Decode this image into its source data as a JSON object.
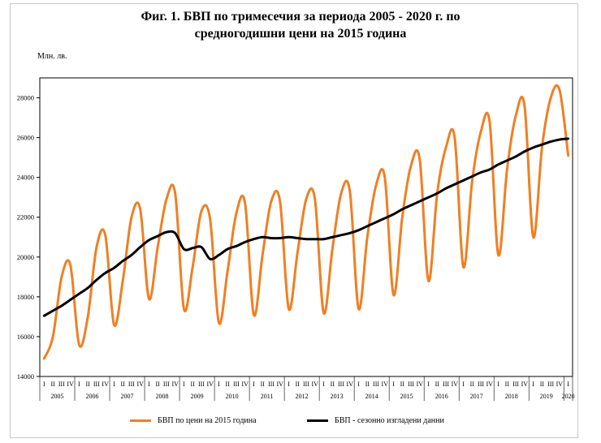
{
  "chart_data": {
    "type": "line",
    "title_line1": "Фиг. 1. БВП по тримесечия за периода 2005 - 2020 г. по",
    "title_line2": "средногодишни цени на 2015 година",
    "ylabel": "Млн. лв.",
    "ylim": [
      14000,
      29000
    ],
    "yticks": [
      14000,
      16000,
      18000,
      20000,
      22000,
      24000,
      26000,
      28000
    ],
    "ytick_labels": [
      "14000",
      "16000",
      "18000",
      "20000",
      "22000",
      "24000",
      "26000",
      "28000"
    ],
    "quarter_labels": [
      "I",
      "II",
      "III",
      "IV"
    ],
    "years": [
      "2005",
      "2006",
      "2007",
      "2008",
      "2009",
      "2010",
      "2011",
      "2012",
      "2013",
      "2014",
      "2015",
      "2016",
      "2017",
      "2018",
      "2019",
      "2020"
    ],
    "series": [
      {
        "name": "БВП по цени на 2015 година",
        "color": "#f07f22",
        "values": [
          14900,
          16000,
          19000,
          19600,
          15600,
          17000,
          20500,
          21100,
          16600,
          18800,
          22000,
          22400,
          17900,
          20500,
          22900,
          23200,
          17400,
          19500,
          22300,
          21900,
          16700,
          19300,
          22200,
          22700,
          17100,
          20100,
          22800,
          22800,
          17400,
          20200,
          22900,
          22900,
          17200,
          20400,
          23200,
          23300,
          17400,
          21000,
          23600,
          24000,
          18100,
          22000,
          24600,
          24900,
          18800,
          23200,
          25500,
          26000,
          19500,
          23800,
          26300,
          26800,
          20100,
          24400,
          27100,
          27600,
          21000,
          25500,
          28000,
          28400,
          25100
        ]
      },
      {
        "name": "БВП - сезонно изгладени данни",
        "color": "#000000",
        "values": [
          17050,
          17300,
          17550,
          17850,
          18150,
          18450,
          18850,
          19200,
          19450,
          19800,
          20100,
          20500,
          20850,
          21050,
          21250,
          21200,
          20400,
          20450,
          20500,
          19900,
          20100,
          20400,
          20550,
          20750,
          20900,
          21000,
          20950,
          20950,
          21000,
          20950,
          20900,
          20900,
          20900,
          21000,
          21100,
          21200,
          21350,
          21550,
          21750,
          21950,
          22150,
          22400,
          22600,
          22800,
          23000,
          23200,
          23450,
          23650,
          23850,
          24050,
          24250,
          24400,
          24650,
          24850,
          25050,
          25300,
          25500,
          25650,
          25800,
          25900,
          25950
        ]
      }
    ]
  }
}
